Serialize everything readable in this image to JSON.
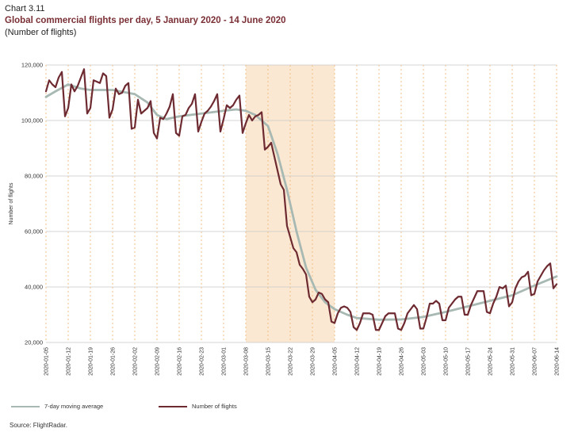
{
  "header": {
    "label": "Chart 3.11",
    "title": "Global commercial flights per day, 5 January 2020 - 14 June 2020",
    "subtitle": "(Number of flights)"
  },
  "source": "Source: FlightRadar.",
  "colors": {
    "flights": "#6e2a31",
    "moving_average": "#a7b9b2",
    "shade": "#fbe8d2",
    "grid": "#c9c9c9",
    "vgrid": "#f0b36f"
  },
  "chart_data": {
    "type": "line",
    "title": "Global commercial flights per day, 5 January 2020 - 14 June 2020",
    "ylabel": "Number of flights",
    "xlabel": "",
    "ylim": [
      20000,
      120000
    ],
    "yticks": [
      20000,
      40000,
      60000,
      80000,
      100000,
      120000
    ],
    "ytick_labels": [
      "20,000",
      "40,000",
      "60,000",
      "80,000",
      "100,000",
      "120,000"
    ],
    "x_start": "2020-01-05",
    "x_end": "2020-06-14",
    "xticks": [
      "2020-01-05",
      "2020-01-12",
      "2020-01-19",
      "2020-01-26",
      "2020-02-02",
      "2020-02-09",
      "2020-02-16",
      "2020-02-23",
      "2020-03-01",
      "2020-03-08",
      "2020-03-15",
      "2020-03-22",
      "2020-03-29",
      "2020-04-05",
      "2020-04-12",
      "2020-04-19",
      "2020-04-26",
      "2020-05-03",
      "2020-05-10",
      "2020-05-17",
      "2020-05-24",
      "2020-05-31",
      "2020-06-07",
      "2020-06-14"
    ],
    "shaded_range": [
      "2020-03-08",
      "2020-04-05"
    ],
    "grid": "horizontal solid, vertical dashed at week ticks",
    "legend_position": "bottom",
    "series": [
      {
        "name": "7-day moving average",
        "color": "#a7b9b2",
        "points": [
          [
            "2020-01-05",
            108500
          ],
          [
            "2020-01-08",
            110500
          ],
          [
            "2020-01-12",
            113000
          ],
          [
            "2020-01-16",
            111500
          ],
          [
            "2020-01-19",
            111000
          ],
          [
            "2020-01-26",
            111000
          ],
          [
            "2020-02-02",
            109500
          ],
          [
            "2020-02-06",
            106500
          ],
          [
            "2020-02-09",
            102000
          ],
          [
            "2020-02-12",
            100500
          ],
          [
            "2020-02-16",
            101500
          ],
          [
            "2020-02-23",
            102500
          ],
          [
            "2020-03-01",
            103500
          ],
          [
            "2020-03-05",
            104000
          ],
          [
            "2020-03-08",
            103500
          ],
          [
            "2020-03-11",
            102000
          ],
          [
            "2020-03-15",
            98000
          ],
          [
            "2020-03-18",
            88000
          ],
          [
            "2020-03-21",
            75000
          ],
          [
            "2020-03-24",
            60000
          ],
          [
            "2020-03-27",
            47000
          ],
          [
            "2020-03-30",
            39000
          ],
          [
            "2020-04-02",
            34500
          ],
          [
            "2020-04-05",
            32000
          ],
          [
            "2020-04-09",
            30000
          ],
          [
            "2020-04-12",
            28800
          ],
          [
            "2020-04-19",
            28200
          ],
          [
            "2020-04-26",
            28300
          ],
          [
            "2020-05-03",
            29200
          ],
          [
            "2020-05-10",
            31000
          ],
          [
            "2020-05-17",
            33000
          ],
          [
            "2020-05-24",
            35000
          ],
          [
            "2020-05-31",
            37000
          ],
          [
            "2020-06-07",
            40500
          ],
          [
            "2020-06-14",
            43800
          ]
        ]
      },
      {
        "name": "Number of flights",
        "color": "#6e2a31",
        "points": [
          [
            "2020-01-05",
            110500
          ],
          [
            "2020-01-06",
            114500
          ],
          [
            "2020-01-07",
            113000
          ],
          [
            "2020-01-08",
            112000
          ],
          [
            "2020-01-09",
            115500
          ],
          [
            "2020-01-10",
            117500
          ],
          [
            "2020-01-11",
            101500
          ],
          [
            "2020-01-12",
            104500
          ],
          [
            "2020-01-13",
            113000
          ],
          [
            "2020-01-14",
            110500
          ],
          [
            "2020-01-15",
            112500
          ],
          [
            "2020-01-16",
            115500
          ],
          [
            "2020-01-17",
            118500
          ],
          [
            "2020-01-18",
            102500
          ],
          [
            "2020-01-19",
            104500
          ],
          [
            "2020-01-20",
            114500
          ],
          [
            "2020-01-21",
            114000
          ],
          [
            "2020-01-22",
            113500
          ],
          [
            "2020-01-23",
            117000
          ],
          [
            "2020-01-24",
            116000
          ],
          [
            "2020-01-25",
            101000
          ],
          [
            "2020-01-26",
            104000
          ],
          [
            "2020-01-27",
            111500
          ],
          [
            "2020-01-28",
            109500
          ],
          [
            "2020-01-29",
            110000
          ],
          [
            "2020-01-30",
            112500
          ],
          [
            "2020-01-31",
            113500
          ],
          [
            "2020-02-01",
            97000
          ],
          [
            "2020-02-02",
            97500
          ],
          [
            "2020-02-03",
            107500
          ],
          [
            "2020-02-04",
            102500
          ],
          [
            "2020-02-05",
            103500
          ],
          [
            "2020-02-06",
            104500
          ],
          [
            "2020-02-07",
            107000
          ],
          [
            "2020-02-08",
            95500
          ],
          [
            "2020-02-09",
            93500
          ],
          [
            "2020-02-10",
            101000
          ],
          [
            "2020-02-11",
            100500
          ],
          [
            "2020-02-12",
            102500
          ],
          [
            "2020-02-13",
            105000
          ],
          [
            "2020-02-14",
            109500
          ],
          [
            "2020-02-15",
            95500
          ],
          [
            "2020-02-16",
            94500
          ],
          [
            "2020-02-17",
            101500
          ],
          [
            "2020-02-18",
            102000
          ],
          [
            "2020-02-19",
            104500
          ],
          [
            "2020-02-20",
            106000
          ],
          [
            "2020-02-21",
            109500
          ],
          [
            "2020-02-22",
            96000
          ],
          [
            "2020-02-23",
            99500
          ],
          [
            "2020-02-24",
            102500
          ],
          [
            "2020-02-25",
            103500
          ],
          [
            "2020-02-26",
            105000
          ],
          [
            "2020-02-27",
            107000
          ],
          [
            "2020-02-28",
            109500
          ],
          [
            "2020-02-29",
            96000
          ],
          [
            "2020-03-01",
            100500
          ],
          [
            "2020-03-02",
            105500
          ],
          [
            "2020-03-03",
            104500
          ],
          [
            "2020-03-04",
            105500
          ],
          [
            "2020-03-05",
            107500
          ],
          [
            "2020-03-06",
            109000
          ],
          [
            "2020-03-07",
            95500
          ],
          [
            "2020-03-08",
            99000
          ],
          [
            "2020-03-09",
            102000
          ],
          [
            "2020-03-10",
            100000
          ],
          [
            "2020-03-11",
            101500
          ],
          [
            "2020-03-12",
            102000
          ],
          [
            "2020-03-13",
            103000
          ],
          [
            "2020-03-14",
            89500
          ],
          [
            "2020-03-15",
            90500
          ],
          [
            "2020-03-16",
            92000
          ],
          [
            "2020-03-17",
            87000
          ],
          [
            "2020-03-18",
            82000
          ],
          [
            "2020-03-19",
            77000
          ],
          [
            "2020-03-20",
            75000
          ],
          [
            "2020-03-21",
            62000
          ],
          [
            "2020-03-22",
            58000
          ],
          [
            "2020-03-23",
            54000
          ],
          [
            "2020-03-24",
            52500
          ],
          [
            "2020-03-25",
            48000
          ],
          [
            "2020-03-26",
            46500
          ],
          [
            "2020-03-27",
            44500
          ],
          [
            "2020-03-28",
            36500
          ],
          [
            "2020-03-29",
            34500
          ],
          [
            "2020-03-30",
            35500
          ],
          [
            "2020-03-31",
            38000
          ],
          [
            "2020-04-01",
            37500
          ],
          [
            "2020-04-02",
            35500
          ],
          [
            "2020-04-03",
            34500
          ],
          [
            "2020-04-04",
            27500
          ],
          [
            "2020-04-05",
            27000
          ],
          [
            "2020-04-06",
            30500
          ],
          [
            "2020-04-07",
            32500
          ],
          [
            "2020-04-08",
            33000
          ],
          [
            "2020-04-09",
            32500
          ],
          [
            "2020-04-10",
            31000
          ],
          [
            "2020-04-11",
            25500
          ],
          [
            "2020-04-12",
            24500
          ],
          [
            "2020-04-13",
            27000
          ],
          [
            "2020-04-14",
            30500
          ],
          [
            "2020-04-15",
            30500
          ],
          [
            "2020-04-16",
            30500
          ],
          [
            "2020-04-17",
            30000
          ],
          [
            "2020-04-18",
            24500
          ],
          [
            "2020-04-19",
            24500
          ],
          [
            "2020-04-20",
            27000
          ],
          [
            "2020-04-21",
            29500
          ],
          [
            "2020-04-22",
            30500
          ],
          [
            "2020-04-23",
            30500
          ],
          [
            "2020-04-24",
            30500
          ],
          [
            "2020-04-25",
            25000
          ],
          [
            "2020-04-26",
            24500
          ],
          [
            "2020-04-27",
            27000
          ],
          [
            "2020-04-28",
            30500
          ],
          [
            "2020-04-29",
            32000
          ],
          [
            "2020-04-30",
            33500
          ],
          [
            "2020-05-01",
            32000
          ],
          [
            "2020-05-02",
            25000
          ],
          [
            "2020-05-03",
            25000
          ],
          [
            "2020-05-04",
            29000
          ],
          [
            "2020-05-05",
            34000
          ],
          [
            "2020-05-06",
            34000
          ],
          [
            "2020-05-07",
            35000
          ],
          [
            "2020-05-08",
            34000
          ],
          [
            "2020-05-09",
            28000
          ],
          [
            "2020-05-10",
            28000
          ],
          [
            "2020-05-11",
            32500
          ],
          [
            "2020-05-12",
            34000
          ],
          [
            "2020-05-13",
            35500
          ],
          [
            "2020-05-14",
            36500
          ],
          [
            "2020-05-15",
            36500
          ],
          [
            "2020-05-16",
            30000
          ],
          [
            "2020-05-17",
            30000
          ],
          [
            "2020-05-18",
            33500
          ],
          [
            "2020-05-19",
            36000
          ],
          [
            "2020-05-20",
            38500
          ],
          [
            "2020-05-21",
            38500
          ],
          [
            "2020-05-22",
            38500
          ],
          [
            "2020-05-23",
            31000
          ],
          [
            "2020-05-24",
            30500
          ],
          [
            "2020-05-25",
            34000
          ],
          [
            "2020-05-26",
            36500
          ],
          [
            "2020-05-27",
            40000
          ],
          [
            "2020-05-28",
            39500
          ],
          [
            "2020-05-29",
            40500
          ],
          [
            "2020-05-30",
            33000
          ],
          [
            "2020-05-31",
            34500
          ],
          [
            "2020-06-01",
            39500
          ],
          [
            "2020-06-02",
            42000
          ],
          [
            "2020-06-03",
            43500
          ],
          [
            "2020-06-04",
            44000
          ],
          [
            "2020-06-05",
            45500
          ],
          [
            "2020-06-06",
            37000
          ],
          [
            "2020-06-07",
            37500
          ],
          [
            "2020-06-08",
            42000
          ],
          [
            "2020-06-09",
            44000
          ],
          [
            "2020-06-10",
            46000
          ],
          [
            "2020-06-11",
            47500
          ],
          [
            "2020-06-12",
            48500
          ],
          [
            "2020-06-13",
            39500
          ],
          [
            "2020-06-14",
            41000
          ]
        ]
      }
    ]
  }
}
